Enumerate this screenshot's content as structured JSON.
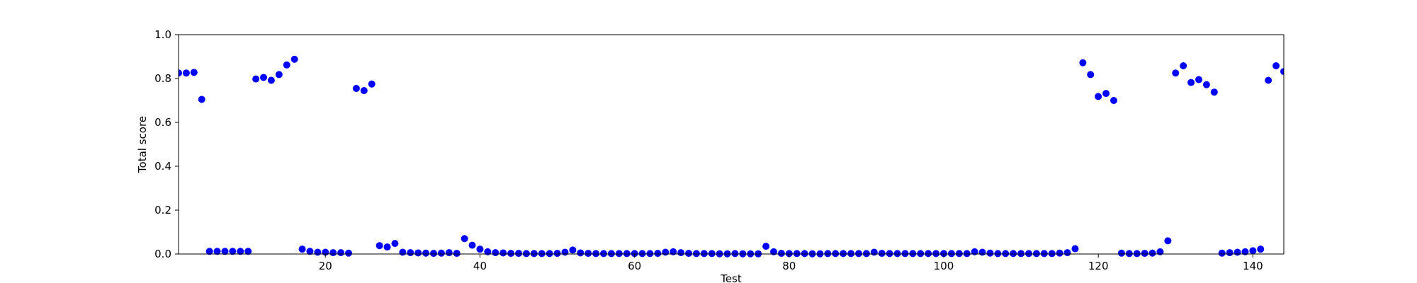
{
  "chart_data": {
    "type": "scatter",
    "xlabel": "Test",
    "ylabel": "Total score",
    "xlim": [
      1,
      144
    ],
    "ylim": [
      0,
      1.0
    ],
    "x_ticks": [
      20,
      40,
      60,
      80,
      100,
      120,
      140
    ],
    "y_ticks": [
      "0.0",
      "0.2",
      "0.4",
      "0.6",
      "0.8",
      "1.0"
    ],
    "marker_color": "#0000ff",
    "grid": false,
    "series": [
      {
        "x": [
          1,
          2,
          3,
          4,
          5,
          6,
          7,
          8,
          9,
          10,
          11,
          12,
          13,
          14,
          15,
          16,
          17,
          18,
          19,
          20,
          21,
          22,
          23,
          24,
          25,
          26,
          27,
          28,
          29,
          30,
          31,
          32,
          33,
          34,
          35,
          36,
          37,
          38,
          39,
          40,
          41,
          42,
          43,
          44,
          45,
          46,
          47,
          48,
          49,
          50,
          51,
          52,
          53,
          54,
          55,
          56,
          57,
          58,
          59,
          60,
          61,
          62,
          63,
          64,
          65,
          66,
          67,
          68,
          69,
          70,
          71,
          72,
          73,
          74,
          75,
          76,
          77,
          78,
          79,
          80,
          81,
          82,
          83,
          84,
          85,
          86,
          87,
          88,
          89,
          90,
          91,
          92,
          93,
          94,
          95,
          96,
          97,
          98,
          99,
          100,
          101,
          102,
          103,
          104,
          105,
          106,
          107,
          108,
          109,
          110,
          111,
          112,
          113,
          114,
          115,
          116,
          117,
          118,
          119,
          120,
          121,
          122,
          123,
          124,
          125,
          126,
          127,
          128,
          129,
          130,
          131,
          132,
          133,
          134,
          135,
          136,
          137,
          138,
          139,
          140,
          141,
          142,
          143,
          144
        ],
        "y": [
          0.825,
          0.825,
          0.828,
          0.705,
          0.012,
          0.012,
          0.012,
          0.012,
          0.012,
          0.012,
          0.798,
          0.805,
          0.792,
          0.818,
          0.862,
          0.888,
          0.022,
          0.012,
          0.008,
          0.008,
          0.006,
          0.006,
          0.004,
          0.755,
          0.745,
          0.775,
          0.038,
          0.032,
          0.048,
          0.008,
          0.006,
          0.005,
          0.004,
          0.003,
          0.004,
          0.006,
          0.003,
          0.07,
          0.04,
          0.022,
          0.01,
          0.006,
          0.005,
          0.003,
          0.003,
          0.002,
          0.002,
          0.002,
          0.002,
          0.003,
          0.008,
          0.018,
          0.005,
          0.003,
          0.002,
          0.002,
          0.002,
          0.002,
          0.002,
          0.002,
          0.002,
          0.002,
          0.003,
          0.008,
          0.01,
          0.006,
          0.003,
          0.002,
          0.002,
          0.002,
          0.001,
          0.001,
          0.002,
          0.001,
          0.001,
          0.001,
          0.035,
          0.01,
          0.003,
          0.002,
          0.002,
          0.002,
          0.001,
          0.001,
          0.002,
          0.002,
          0.002,
          0.002,
          0.002,
          0.002,
          0.008,
          0.003,
          0.002,
          0.002,
          0.002,
          0.002,
          0.002,
          0.002,
          0.002,
          0.002,
          0.002,
          0.002,
          0.002,
          0.01,
          0.008,
          0.004,
          0.002,
          0.002,
          0.002,
          0.002,
          0.002,
          0.002,
          0.002,
          0.002,
          0.004,
          0.006,
          0.024,
          0.872,
          0.818,
          0.718,
          0.732,
          0.7,
          0.004,
          0.002,
          0.002,
          0.003,
          0.004,
          0.01,
          0.06,
          0.825,
          0.858,
          0.782,
          0.795,
          0.772,
          0.738,
          0.004,
          0.006,
          0.008,
          0.01,
          0.015,
          0.022,
          0.792,
          0.858,
          0.832
        ]
      }
    ]
  }
}
